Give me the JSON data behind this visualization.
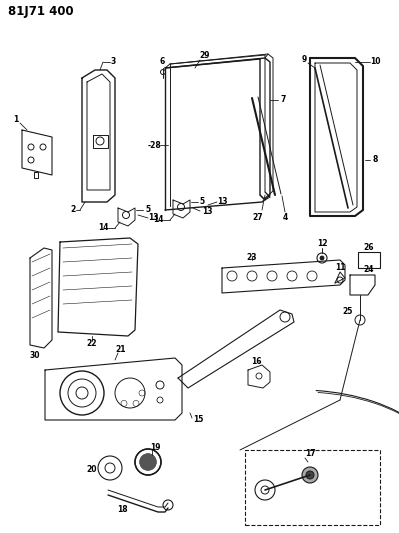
{
  "title": "81J71 400",
  "bg_color": "#ffffff",
  "line_color": "#1a1a1a",
  "fig_width": 3.99,
  "fig_height": 5.33,
  "dpi": 100
}
